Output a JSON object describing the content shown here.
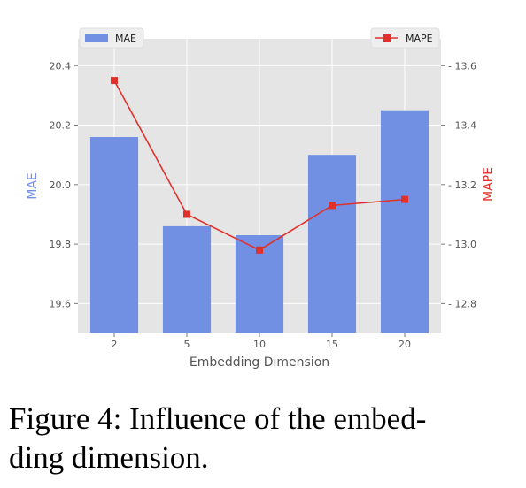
{
  "chart_data": {
    "type": "bar+line",
    "categories": [
      "2",
      "5",
      "10",
      "15",
      "20"
    ],
    "xlabel": "Embedding Dimension",
    "bar_series": {
      "name": "MAE",
      "values": [
        20.16,
        19.86,
        19.83,
        20.1,
        20.25
      ],
      "color": "#7190e4"
    },
    "line_series": {
      "name": "MAPE",
      "values": [
        13.55,
        13.1,
        12.98,
        13.13,
        13.15
      ],
      "color": "#e0302c"
    },
    "y_left": {
      "label": "MAE",
      "range": [
        19.5,
        20.49
      ],
      "ticks": [
        "19.6",
        "19.8",
        "20.0",
        "20.2",
        "20.4"
      ],
      "label_color": "#6f8fe8"
    },
    "y_right": {
      "label": "MAPE",
      "range": [
        12.7,
        13.69
      ],
      "ticks": [
        "12.8",
        "13.0",
        "13.2",
        "13.4",
        "13.6"
      ],
      "label_color": "#e0302c"
    },
    "grid": true,
    "background": "#e5e5e5",
    "legend": {
      "bar": "top-left",
      "line": "top-right"
    }
  },
  "caption": {
    "line1": "Figure 4: Influence of the embed-",
    "line2": "ding dimension."
  }
}
